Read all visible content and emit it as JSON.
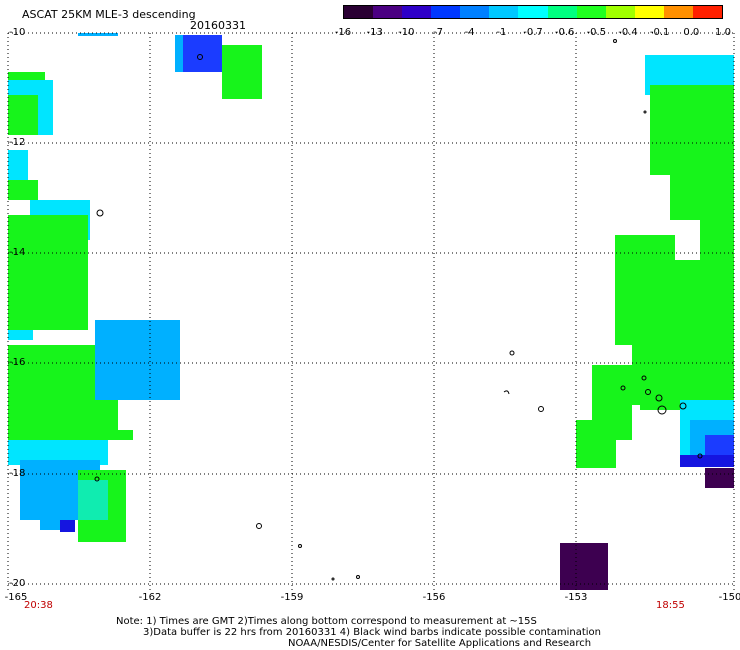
{
  "title": "ASCAT 25KM MLE-3 descending",
  "date": "20160331",
  "colorbar": {
    "labels": [
      "-16",
      "-13",
      "-10",
      "-7",
      "-4",
      "-1",
      "-0.7",
      "-0.6",
      "-0.5",
      "-0.4",
      "-0.1",
      "0.0",
      "1.0"
    ],
    "colors": [
      "#2a0033",
      "#4b0082",
      "#2e00c8",
      "#0038ff",
      "#0080ff",
      "#00c8ff",
      "#00ffff",
      "#00ff80",
      "#20ff20",
      "#a0ff00",
      "#ffff00",
      "#ff9000",
      "#ff2000"
    ]
  },
  "y_axis": {
    "labels": [
      "-10",
      "-12",
      "-14",
      "-16",
      "-18",
      "-20"
    ]
  },
  "x_axis": {
    "labels": [
      "-165",
      "-162",
      "-159",
      "-156",
      "-153",
      "-150"
    ]
  },
  "times": {
    "left": "20:38",
    "right": "18:55"
  },
  "notes": [
    "Note: 1) Times are GMT 2)Times along bottom correspond to measurement at ~15S",
    "3)Data buffer is 22 hrs from 20160331 4) Black wind barbs indicate possible contamination",
    "NOAA/NESDIS/Center for Satellite Applications and Research"
  ],
  "swath_colors": {
    "green": "#17f41b",
    "cyan": "#00e5ff",
    "light_blue": "#00b0ff",
    "blue": "#1b3cff",
    "dark_blue": "#1515e0",
    "purple": "#3d0050",
    "seafoam": "#10ecb0"
  }
}
